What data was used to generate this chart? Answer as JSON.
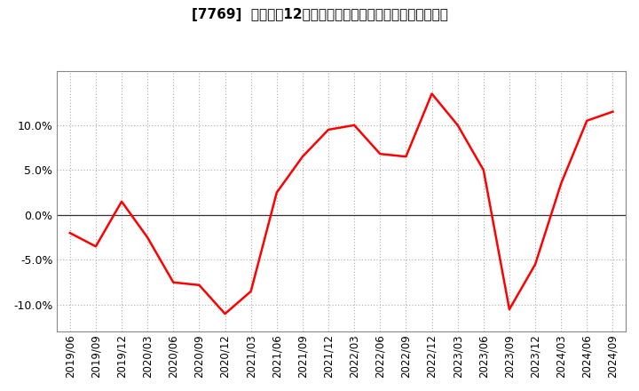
{
  "title": "[7769]  売上高の12か月移動合計の対前年同期増減率の推移",
  "line_color": "#ff0000",
  "background_color": "#ffffff",
  "plot_bg_color": "#ffffff",
  "grid_color": "#aaaaaa",
  "zero_line_color": "#333333",
  "dates": [
    "2019/06",
    "2019/09",
    "2019/12",
    "2020/03",
    "2020/06",
    "2020/09",
    "2020/12",
    "2021/03",
    "2021/06",
    "2021/09",
    "2021/12",
    "2022/03",
    "2022/06",
    "2022/09",
    "2022/12",
    "2023/03",
    "2023/06",
    "2023/09",
    "2023/12",
    "2024/03",
    "2024/06",
    "2024/09"
  ],
  "values": [
    -2.0,
    -3.5,
    1.5,
    -2.5,
    -7.5,
    -7.8,
    -11.0,
    -8.5,
    2.5,
    6.5,
    9.5,
    10.0,
    6.8,
    6.5,
    13.5,
    10.0,
    5.0,
    -10.5,
    -5.5,
    3.5,
    10.5,
    11.5
  ],
  "ylim": [
    -13,
    16
  ],
  "yticks": [
    -10.0,
    -5.0,
    0.0,
    5.0,
    10.0
  ],
  "figsize": [
    7.2,
    4.4
  ],
  "dpi": 100,
  "title_fontsize": 11,
  "tick_fontsize": 8.5,
  "ytick_fontsize": 9
}
